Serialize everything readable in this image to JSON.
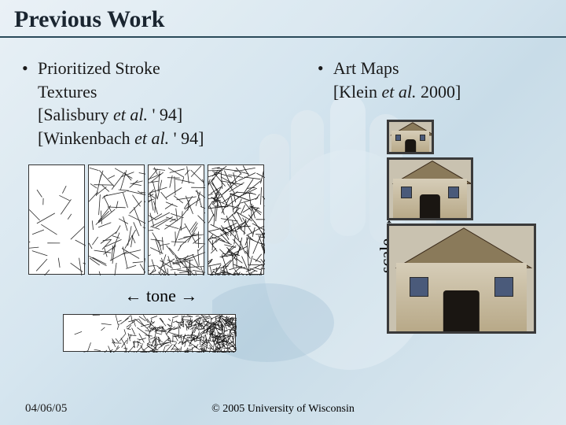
{
  "title": "Previous Work",
  "left": {
    "heading_line1": "Prioritized Stroke",
    "heading_line2": "Textures",
    "citation1_pre": "[Salisbury ",
    "citation1_ital": "et al.",
    "citation1_post": " ' 94]",
    "citation2_pre": "[Winkenbach ",
    "citation2_ital": "et al.",
    "citation2_post": " ' 94]",
    "stroke_swatches": [
      {
        "density": 0.1,
        "color": "#2a2a2a"
      },
      {
        "density": 0.35,
        "color": "#2a2a2a"
      },
      {
        "density": 0.6,
        "color": "#2a2a2a"
      },
      {
        "density": 0.95,
        "color": "#1a1a1a"
      }
    ],
    "tone_label": "← tone →"
  },
  "right": {
    "heading_line1": "Art Maps",
    "citation_pre": "[Klein ",
    "citation_ital": "et al.",
    "citation_post": " 2000]",
    "scale_label": "← scale →",
    "artmaps": [
      {
        "w": 60,
        "h": 44
      },
      {
        "w": 110,
        "h": 80
      },
      {
        "w": 190,
        "h": 140
      }
    ]
  },
  "footer": {
    "date": "04/06/05",
    "copyright": "© 2005 University of Wisconsin"
  },
  "colors": {
    "border": "#2a4a5a",
    "text": "#1a2530",
    "swatch_border": "#333333",
    "artmap_border": "#3a3a3a",
    "house_wall": "#c9c2b0",
    "door": "#1a1612"
  }
}
